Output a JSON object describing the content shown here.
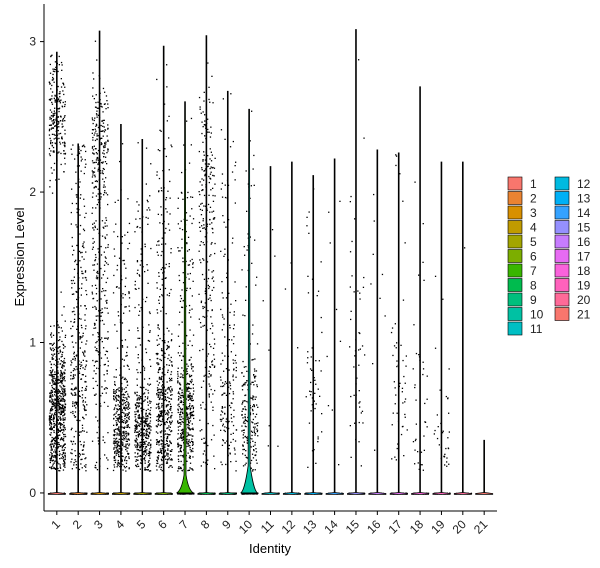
{
  "chart_data": {
    "type": "violin",
    "xlabel": "Identity",
    "ylabel": "Expression Level",
    "ylim": [
      -0.12,
      3.25
    ],
    "yticks": [
      0,
      1,
      2,
      3
    ],
    "legend_position": "right",
    "categories": [
      "1",
      "2",
      "3",
      "4",
      "5",
      "6",
      "7",
      "8",
      "9",
      "10",
      "11",
      "12",
      "13",
      "14",
      "15",
      "16",
      "17",
      "18",
      "19",
      "20",
      "21"
    ],
    "colors": [
      "#F8766D",
      "#EA8331",
      "#D89000",
      "#C09B00",
      "#A3A500",
      "#7CAE00",
      "#39B600",
      "#00BB4E",
      "#00BF7D",
      "#00C1A3",
      "#00BFC4",
      "#00BAE0",
      "#00B0F6",
      "#35A2FF",
      "#9590FF",
      "#C77CFF",
      "#E76BF3",
      "#FA62DB",
      "#FF62BC",
      "#FF6A98",
      "#F8766D"
    ],
    "series": [
      {
        "name": "1",
        "max": 2.93,
        "fraction_expressing": 0.95,
        "density": 0.85,
        "dist": [
          [
            0.55,
            0.25,
            0.75
          ],
          [
            2.5,
            0.2,
            0.25
          ]
        ]
      },
      {
        "name": "2",
        "max": 2.32,
        "fraction_expressing": 0.7,
        "density": 0.45,
        "dist": [
          [
            0.7,
            0.4,
            0.7
          ],
          [
            1.7,
            0.45,
            0.3
          ]
        ]
      },
      {
        "name": "3",
        "max": 3.07,
        "fraction_expressing": 0.85,
        "density": 0.45,
        "dist": [
          [
            2.3,
            0.2,
            0.45
          ],
          [
            1.2,
            0.55,
            0.55
          ]
        ]
      },
      {
        "name": "4",
        "max": 2.45,
        "fraction_expressing": 0.75,
        "density": 0.55,
        "dist": [
          [
            0.45,
            0.18,
            0.8
          ],
          [
            1.3,
            0.5,
            0.2
          ]
        ]
      },
      {
        "name": "5",
        "max": 2.35,
        "fraction_expressing": 0.75,
        "density": 0.55,
        "dist": [
          [
            0.4,
            0.18,
            0.8
          ],
          [
            1.3,
            0.5,
            0.2
          ]
        ]
      },
      {
        "name": "6",
        "max": 2.97,
        "fraction_expressing": 0.8,
        "density": 0.55,
        "dist": [
          [
            0.55,
            0.25,
            0.75
          ],
          [
            1.6,
            0.5,
            0.25
          ]
        ]
      },
      {
        "name": "7",
        "max": 2.6,
        "fraction_expressing": 0.75,
        "density": 0.6,
        "dist": [
          [
            0.5,
            0.22,
            0.8
          ],
          [
            1.5,
            0.45,
            0.2
          ]
        ]
      },
      {
        "name": "8",
        "max": 3.04,
        "fraction_expressing": 0.6,
        "density": 0.4,
        "dist": [
          [
            2.0,
            0.35,
            0.55
          ],
          [
            0.9,
            0.5,
            0.45
          ]
        ]
      },
      {
        "name": "9",
        "max": 2.67,
        "fraction_expressing": 0.55,
        "density": 0.3,
        "dist": [
          [
            0.6,
            0.25,
            0.7
          ],
          [
            1.5,
            0.5,
            0.3
          ]
        ]
      },
      {
        "name": "10",
        "max": 2.55,
        "fraction_expressing": 0.55,
        "density": 0.35,
        "dist": [
          [
            0.5,
            0.2,
            0.8
          ],
          [
            1.4,
            0.5,
            0.2
          ]
        ]
      },
      {
        "name": "11",
        "max": 2.17,
        "fraction_expressing": 0.15,
        "density": 0.05,
        "dist": [
          [
            0.8,
            0.4,
            1.0
          ]
        ]
      },
      {
        "name": "12",
        "max": 2.2,
        "fraction_expressing": 0.1,
        "density": 0.04,
        "dist": [
          [
            1.3,
            0.5,
            1.0
          ]
        ]
      },
      {
        "name": "13",
        "max": 2.11,
        "fraction_expressing": 0.35,
        "density": 0.15,
        "dist": [
          [
            0.6,
            0.25,
            0.8
          ],
          [
            1.5,
            0.4,
            0.2
          ]
        ]
      },
      {
        "name": "14",
        "max": 2.22,
        "fraction_expressing": 0.15,
        "density": 0.05,
        "dist": [
          [
            1.2,
            0.5,
            1.0
          ]
        ]
      },
      {
        "name": "15",
        "max": 3.08,
        "fraction_expressing": 0.35,
        "density": 0.12,
        "dist": [
          [
            0.9,
            0.4,
            0.7
          ],
          [
            1.8,
            0.5,
            0.3
          ]
        ]
      },
      {
        "name": "16",
        "max": 2.28,
        "fraction_expressing": 0.12,
        "density": 0.04,
        "dist": [
          [
            1.0,
            0.5,
            1.0
          ]
        ]
      },
      {
        "name": "17",
        "max": 2.26,
        "fraction_expressing": 0.35,
        "density": 0.14,
        "dist": [
          [
            0.6,
            0.25,
            0.8
          ],
          [
            1.5,
            0.5,
            0.2
          ]
        ]
      },
      {
        "name": "18",
        "max": 2.7,
        "fraction_expressing": 0.3,
        "density": 0.1,
        "dist": [
          [
            0.6,
            0.3,
            0.8
          ],
          [
            1.6,
            0.5,
            0.2
          ]
        ]
      },
      {
        "name": "19",
        "max": 2.2,
        "fraction_expressing": 0.3,
        "density": 0.1,
        "dist": [
          [
            0.4,
            0.2,
            0.8
          ],
          [
            1.5,
            0.5,
            0.2
          ]
        ]
      },
      {
        "name": "20",
        "max": 2.2,
        "fraction_expressing": 0.1,
        "density": 0.03,
        "dist": [
          [
            1.5,
            0.5,
            1.0
          ]
        ]
      },
      {
        "name": "21",
        "max": 0.35,
        "fraction_expressing": 0.02,
        "density": 0.005,
        "dist": [
          [
            0.25,
            0.08,
            1.0
          ]
        ]
      }
    ],
    "violin_bulges": [
      {
        "category": "7",
        "height": 0.12
      },
      {
        "category": "10",
        "height": 0.18
      }
    ]
  }
}
